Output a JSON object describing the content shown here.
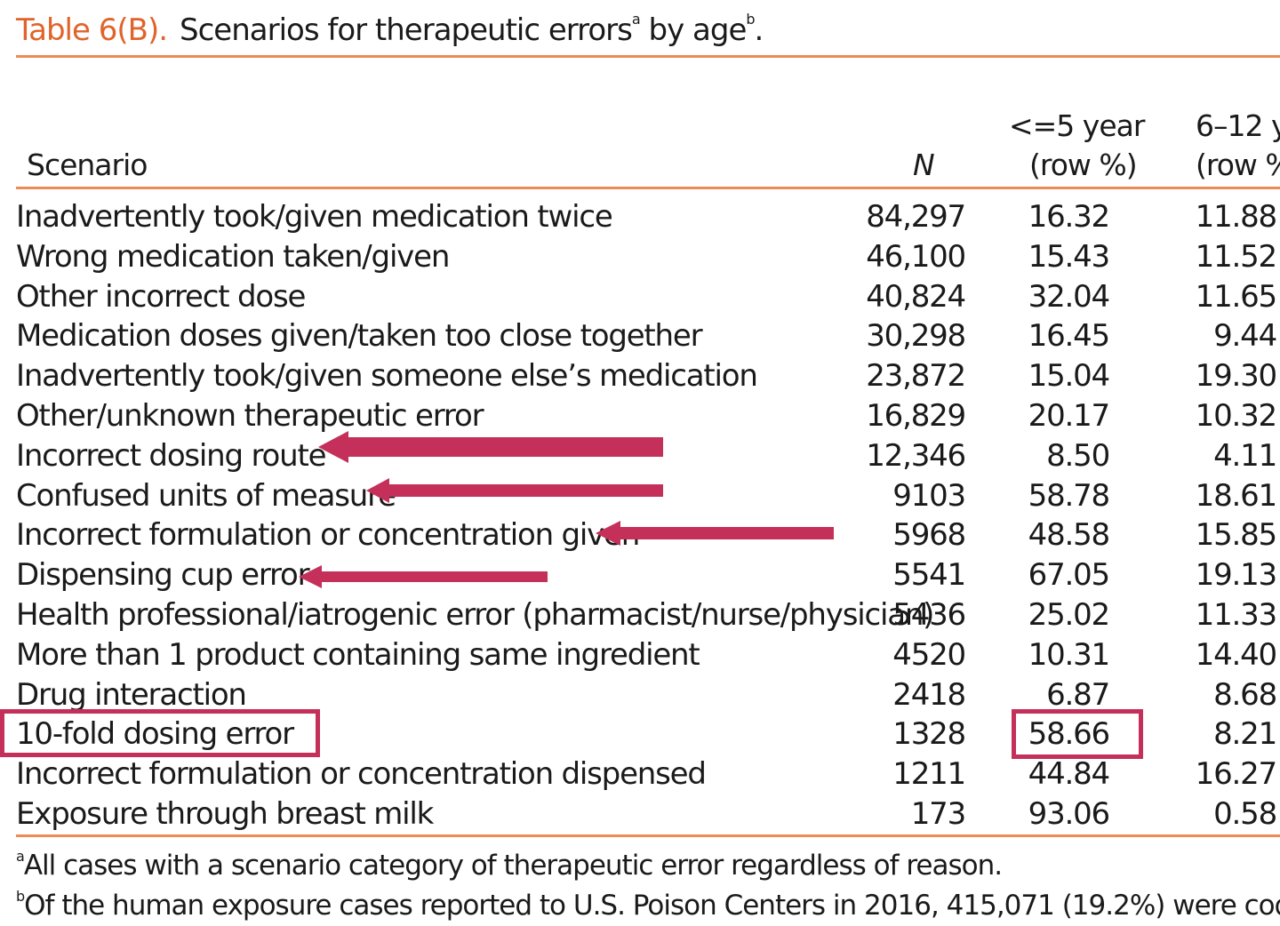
{
  "title": {
    "label": "Table 6(B).",
    "text": "Scenarios for therapeutic errors",
    "sup_a": "a",
    "mid": " by age",
    "sup_b": "b",
    "end": "."
  },
  "headers": {
    "scenario": "Scenario",
    "n": "N",
    "col1_line1": "<=5 year",
    "col1_line2": "(row %)",
    "col2_line1": "6–12 y",
    "col2_line2": "(row %"
  },
  "rows": [
    {
      "scenario": "Inadvertently took/given medication twice",
      "n": "84,297",
      "a": "16.32",
      "b": "11.88"
    },
    {
      "scenario": "Wrong medication taken/given",
      "n": "46,100",
      "a": "15.43",
      "b": "11.52"
    },
    {
      "scenario": "Other incorrect dose",
      "n": "40,824",
      "a": "32.04",
      "b": "11.65"
    },
    {
      "scenario": "Medication doses given/taken too close together",
      "n": "30,298",
      "a": "16.45",
      "b": "9.44"
    },
    {
      "scenario": "Inadvertently took/given someone else’s medication",
      "n": "23,872",
      "a": "15.04",
      "b": "19.30"
    },
    {
      "scenario": "Other/unknown therapeutic error",
      "n": "16,829",
      "a": "20.17",
      "b": "10.32"
    },
    {
      "scenario": "Incorrect dosing route",
      "n": "12,346",
      "a": "8.50",
      "b": "4.11"
    },
    {
      "scenario": "Confused units of measure",
      "n": "9103",
      "a": "58.78",
      "b": "18.61"
    },
    {
      "scenario": "Incorrect formulation or concentration given",
      "n": "5968",
      "a": "48.58",
      "b": "15.85"
    },
    {
      "scenario": "Dispensing cup error",
      "n": "5541",
      "a": "67.05",
      "b": "19.13"
    },
    {
      "scenario": "Health professional/iatrogenic error (pharmacist/nurse/physician)",
      "n": "5436",
      "a": "25.02",
      "b": "11.33"
    },
    {
      "scenario": "More than 1 product containing same ingredient",
      "n": "4520",
      "a": "10.31",
      "b": "14.40"
    },
    {
      "scenario": "Drug interaction",
      "n": "2418",
      "a": "6.87",
      "b": "8.68"
    },
    {
      "scenario": "10-fold dosing error",
      "n": "1328",
      "a": "58.66",
      "b": "8.21"
    },
    {
      "scenario": "Incorrect formulation or concentration dispensed",
      "n": "1211",
      "a": "44.84",
      "b": "16.27"
    },
    {
      "scenario": "Exposure through breast milk",
      "n": "173",
      "a": "93.06",
      "b": "0.58"
    }
  ],
  "footnotes": {
    "a_mark": "a",
    "a_text": "All cases with a scenario category of therapeutic error regardless of reason.",
    "b_mark": "b",
    "b_text": "Of the human exposure cases reported to U.S. Poison Centers in 2016, 415,071 (19.2%) were cod"
  },
  "annotations": {
    "color": "#c4305a",
    "highlighted_rows": [
      "Incorrect dosing route",
      "Confused units of measure",
      "Incorrect formulation or concentration given",
      "Dispensing cup error"
    ],
    "boxed": [
      "10-fold dosing error",
      "58.66"
    ]
  }
}
